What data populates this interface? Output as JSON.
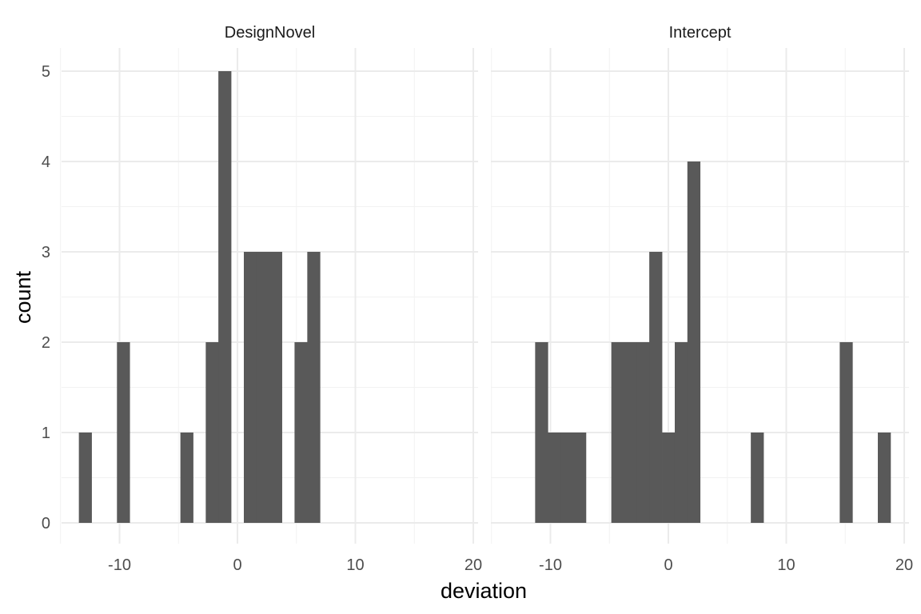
{
  "chart_data": {
    "type": "bar",
    "subtype": "faceted-histogram",
    "xlabel": "deviation",
    "ylabel": "count",
    "x_ticks": [
      -10,
      0,
      10,
      20
    ],
    "y_ticks": [
      0,
      1,
      2,
      3,
      4,
      5
    ],
    "xlim": [
      -15,
      20
    ],
    "ylim": [
      0,
      5
    ],
    "binwidth": 1.076,
    "grid": true,
    "bar_color": "#595959",
    "panels": [
      {
        "title": "DesignNovel",
        "bins": [
          {
            "x": -12.91,
            "count": 1
          },
          {
            "x": -9.68,
            "count": 2
          },
          {
            "x": -4.3,
            "count": 1
          },
          {
            "x": -2.15,
            "count": 2
          },
          {
            "x": -1.08,
            "count": 5
          },
          {
            "x": 1.08,
            "count": 3
          },
          {
            "x": 2.15,
            "count": 3
          },
          {
            "x": 3.23,
            "count": 3
          },
          {
            "x": 5.38,
            "count": 2
          },
          {
            "x": 6.46,
            "count": 3
          }
        ]
      },
      {
        "title": "Intercept",
        "bins": [
          {
            "x": -10.76,
            "count": 2
          },
          {
            "x": -9.68,
            "count": 1
          },
          {
            "x": -8.61,
            "count": 1
          },
          {
            "x": -7.53,
            "count": 1
          },
          {
            "x": -4.3,
            "count": 2
          },
          {
            "x": -3.23,
            "count": 2
          },
          {
            "x": -2.15,
            "count": 2
          },
          {
            "x": -1.08,
            "count": 3
          },
          {
            "x": 0.0,
            "count": 1
          },
          {
            "x": 1.08,
            "count": 2
          },
          {
            "x": 2.15,
            "count": 4
          },
          {
            "x": 7.53,
            "count": 1
          },
          {
            "x": 15.07,
            "count": 2
          },
          {
            "x": 18.3,
            "count": 1
          }
        ]
      }
    ]
  }
}
